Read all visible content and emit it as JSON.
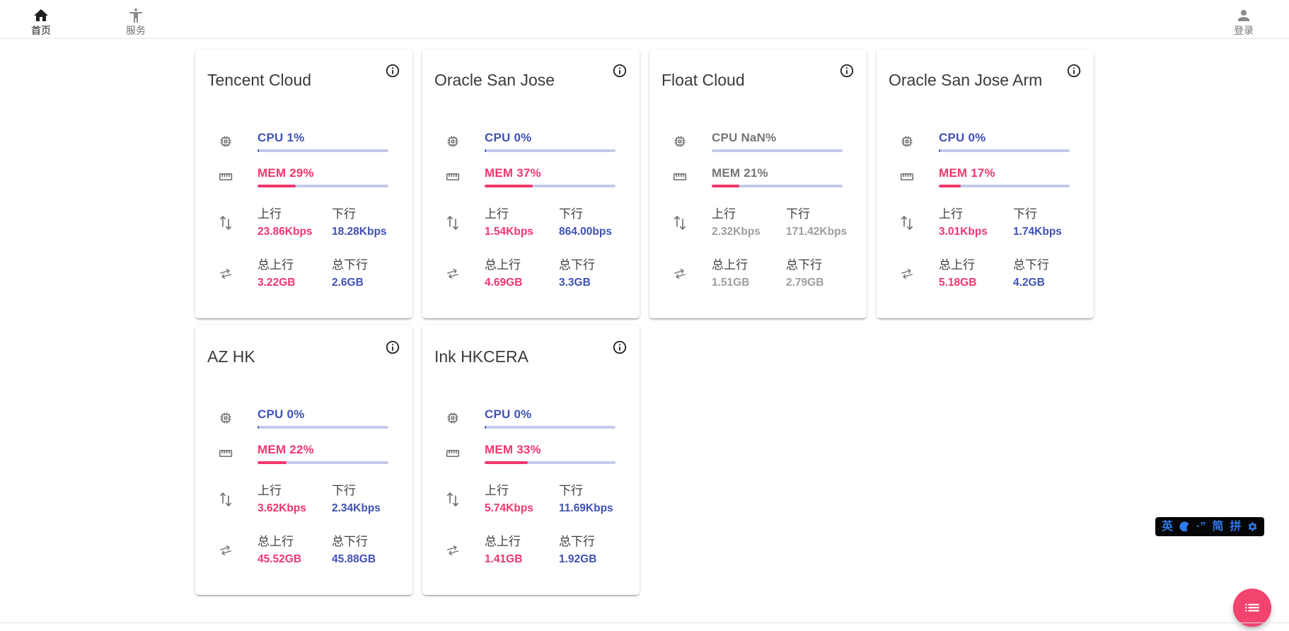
{
  "nav": {
    "items": [
      {
        "label": "首页",
        "icon": "home-icon",
        "active": true
      },
      {
        "label": "服务",
        "icon": "accessibility-icon",
        "active": false
      }
    ],
    "login": {
      "label": "登录",
      "icon": "person-icon"
    }
  },
  "labels": {
    "cpu": "CPU",
    "mem": "MEM",
    "up": "上行",
    "down": "下行",
    "total_up": "总上行",
    "total_down": "总下行"
  },
  "colors": {
    "accent_blue": "#3f51b5",
    "accent_pink": "#f1366e",
    "bar_track": "#c5cae9",
    "muted_value": "#9e9e9e",
    "fab": "#f3436f",
    "ime_text": "#2e7bea"
  },
  "servers": [
    {
      "name": "Tencent Cloud",
      "cpu": "1%",
      "cpu_pct": 1,
      "mem": "29%",
      "mem_pct": 29,
      "up": "23.86Kbps",
      "down": "18.28Kbps",
      "total_up": "3.22GB",
      "total_down": "2.6GB",
      "muted": false
    },
    {
      "name": "Oracle San Jose",
      "cpu": "0%",
      "cpu_pct": 0,
      "mem": "37%",
      "mem_pct": 37,
      "up": "1.54Kbps",
      "down": "864.00bps",
      "total_up": "4.69GB",
      "total_down": "3.3GB",
      "muted": false
    },
    {
      "name": "Float Cloud",
      "cpu": "NaN%",
      "cpu_pct": null,
      "mem": "21%",
      "mem_pct": 21,
      "up": "2.32Kbps",
      "down": "171.42Kbps",
      "total_up": "1.51GB",
      "total_down": "2.79GB",
      "muted": true
    },
    {
      "name": "Oracle San Jose Arm",
      "cpu": "0%",
      "cpu_pct": 0,
      "mem": "17%",
      "mem_pct": 17,
      "up": "3.01Kbps",
      "down": "1.74Kbps",
      "total_up": "5.18GB",
      "total_down": "4.2GB",
      "muted": false
    },
    {
      "name": "AZ HK",
      "cpu": "0%",
      "cpu_pct": 0,
      "mem": "22%",
      "mem_pct": 22,
      "up": "3.62Kbps",
      "down": "2.34Kbps",
      "total_up": "45.52GB",
      "total_down": "45.88GB",
      "muted": false
    },
    {
      "name": "Ink HKCERA",
      "cpu": "0%",
      "cpu_pct": 0,
      "mem": "33%",
      "mem_pct": 33,
      "up": "5.74Kbps",
      "down": "11.69Kbps",
      "total_up": "1.41GB",
      "total_down": "1.92GB",
      "muted": false
    }
  ],
  "ime_toolbar": {
    "lang_mode": "英",
    "moon_icon": "crescent-moon-icon",
    "punctuation": "·”",
    "charset": "简",
    "input_method": "拼",
    "settings_icon": "gear-icon"
  },
  "fab": {
    "icon": "list-icon"
  }
}
